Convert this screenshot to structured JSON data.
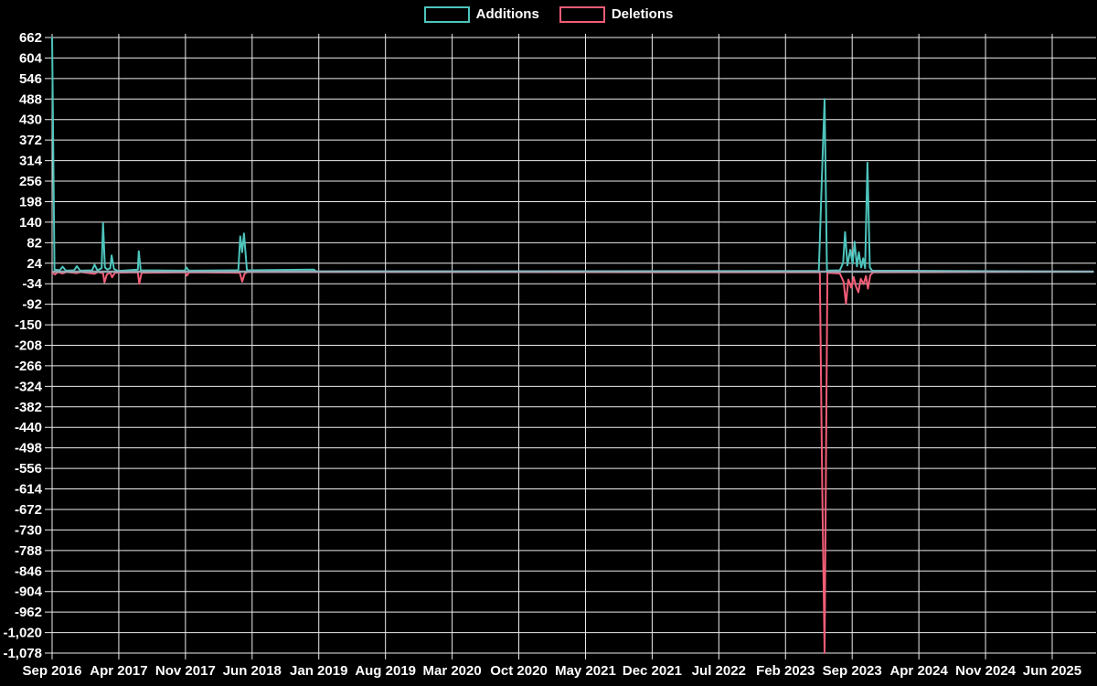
{
  "legend": {
    "items": [
      {
        "label": "Additions",
        "color": "#4dc4bc"
      },
      {
        "label": "Deletions",
        "color": "#f25d77"
      }
    ]
  },
  "chart_data": {
    "type": "line",
    "title": "",
    "xlabel": "",
    "ylabel": "",
    "grid": true,
    "legend_position": "top-center",
    "background_color": "#000000",
    "gridline_color": "#ececec",
    "text_color": "#ffffff",
    "zero_baseline_color": "#97aeb9",
    "ylim": [
      -1078,
      662
    ],
    "y_tick_step": 58,
    "y_tick_labels": [
      "662",
      "604",
      "546",
      "488",
      "430",
      "372",
      "314",
      "256",
      "198",
      "140",
      "82",
      "24",
      "-34",
      "-92",
      "-150",
      "-208",
      "-266",
      "-324",
      "-382",
      "-440",
      "-498",
      "-556",
      "-614",
      "-672",
      "-730",
      "-788",
      "-846",
      "-904",
      "-962",
      "-1,020",
      "-1,078"
    ],
    "x_tick_labels": [
      "Sep 2016",
      "Apr 2017",
      "Nov 2017",
      "Jun 2018",
      "Jan 2019",
      "Aug 2019",
      "Mar 2020",
      "Oct 2020",
      "May 2021",
      "Dec 2021",
      "Jul 2022",
      "Feb 2023",
      "Sep 2023",
      "Apr 2024",
      "Nov 2024",
      "Jun 2025"
    ],
    "x_tick_month_step": 7,
    "xlim_months": [
      0,
      109.3
    ],
    "series": [
      {
        "name": "Additions",
        "color": "#4dc4bc",
        "points": [
          [
            0,
            662
          ],
          [
            0.25,
            6
          ],
          [
            0.8,
            4
          ],
          [
            1.1,
            14
          ],
          [
            1.45,
            3
          ],
          [
            2.3,
            4
          ],
          [
            2.6,
            16
          ],
          [
            2.95,
            3
          ],
          [
            4.2,
            4
          ],
          [
            4.45,
            20
          ],
          [
            4.75,
            4
          ],
          [
            5.2,
            10
          ],
          [
            5.35,
            138
          ],
          [
            5.55,
            12
          ],
          [
            5.8,
            6
          ],
          [
            6.1,
            10
          ],
          [
            6.25,
            46
          ],
          [
            6.5,
            8
          ],
          [
            6.9,
            2
          ],
          [
            9.0,
            6
          ],
          [
            9.1,
            58
          ],
          [
            9.3,
            4
          ],
          [
            13.9,
            3
          ],
          [
            14.1,
            12
          ],
          [
            14.35,
            3
          ],
          [
            19.55,
            4
          ],
          [
            19.75,
            100
          ],
          [
            19.95,
            55
          ],
          [
            20.15,
            108
          ],
          [
            20.45,
            4
          ],
          [
            27.5,
            6
          ],
          [
            27.7,
            1
          ],
          [
            80.5,
            2
          ],
          [
            80.85,
            292
          ],
          [
            81.1,
            488
          ],
          [
            81.35,
            3
          ],
          [
            82.7,
            4
          ],
          [
            83.05,
            25
          ],
          [
            83.25,
            112
          ],
          [
            83.5,
            18
          ],
          [
            83.8,
            62
          ],
          [
            84.05,
            22
          ],
          [
            84.25,
            85
          ],
          [
            84.5,
            15
          ],
          [
            84.7,
            55
          ],
          [
            84.95,
            12
          ],
          [
            85.15,
            38
          ],
          [
            85.35,
            10
          ],
          [
            85.6,
            308
          ],
          [
            85.85,
            12
          ],
          [
            86.1,
            3
          ],
          [
            109.3,
            0
          ]
        ]
      },
      {
        "name": "Deletions",
        "color": "#f25d77",
        "points": [
          [
            0,
            -2
          ],
          [
            0.3,
            -8
          ],
          [
            0.6,
            -1
          ],
          [
            1.1,
            -5
          ],
          [
            1.5,
            -1
          ],
          [
            2.6,
            -4
          ],
          [
            3.0,
            -1
          ],
          [
            4.45,
            -6
          ],
          [
            4.8,
            -1
          ],
          [
            5.35,
            -4
          ],
          [
            5.5,
            -30
          ],
          [
            5.75,
            -8
          ],
          [
            6.1,
            -2
          ],
          [
            6.3,
            -16
          ],
          [
            6.6,
            -3
          ],
          [
            9.0,
            -2
          ],
          [
            9.15,
            -34
          ],
          [
            9.4,
            -3
          ],
          [
            14.0,
            -2
          ],
          [
            14.15,
            -11
          ],
          [
            14.4,
            -2
          ],
          [
            19.7,
            -3
          ],
          [
            19.95,
            -28
          ],
          [
            20.2,
            -6
          ],
          [
            20.5,
            -1
          ],
          [
            80.6,
            -2
          ],
          [
            80.85,
            -605
          ],
          [
            81.1,
            -1078
          ],
          [
            81.4,
            -3
          ],
          [
            82.7,
            -5
          ],
          [
            83.1,
            -28
          ],
          [
            83.35,
            -90
          ],
          [
            83.6,
            -22
          ],
          [
            83.9,
            -45
          ],
          [
            84.15,
            -15
          ],
          [
            84.4,
            -42
          ],
          [
            84.65,
            -58
          ],
          [
            84.9,
            -20
          ],
          [
            85.2,
            -35
          ],
          [
            85.45,
            -12
          ],
          [
            85.65,
            -48
          ],
          [
            85.9,
            -10
          ],
          [
            86.2,
            -2
          ],
          [
            109.3,
            0
          ]
        ]
      }
    ]
  }
}
